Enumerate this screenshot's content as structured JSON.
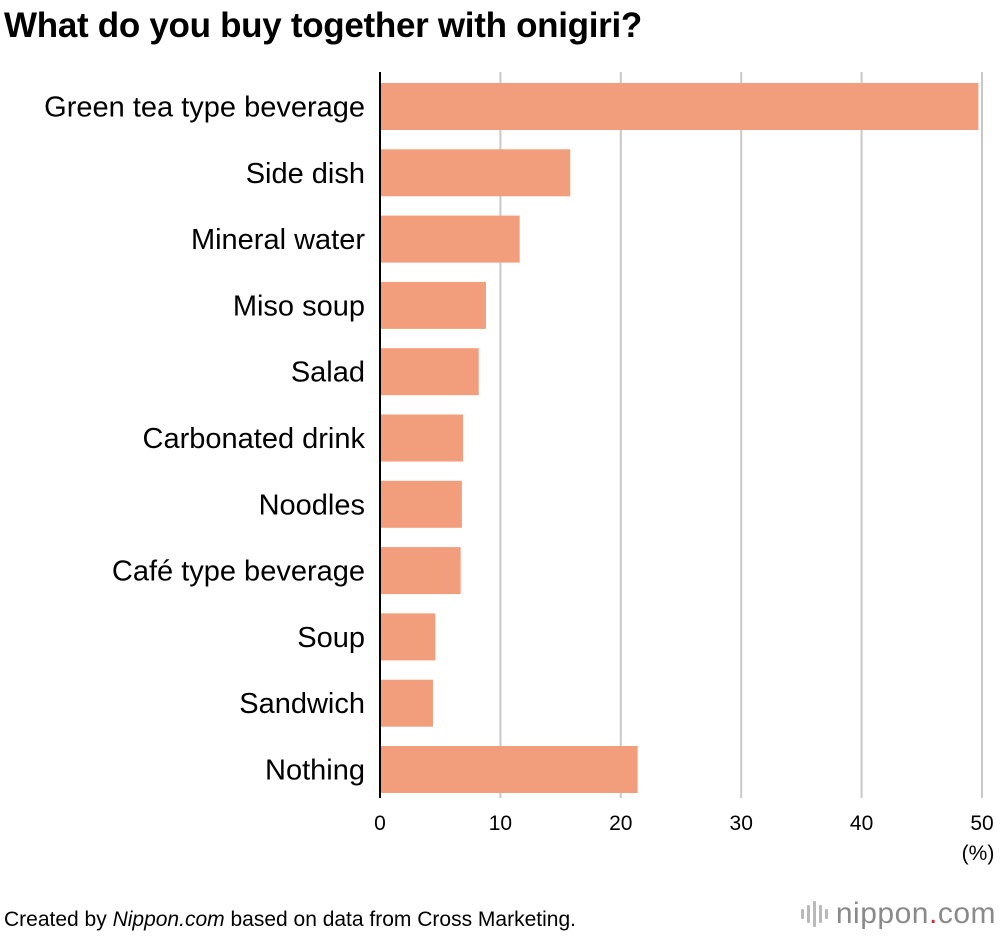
{
  "chart_data": {
    "type": "bar",
    "orientation": "horizontal",
    "title": "What do you buy together with onigiri?",
    "categories": [
      "Green tea type beverage",
      "Side dish",
      "Mineral water",
      "Miso soup",
      "Salad",
      "Carbonated drink",
      "Noodles",
      "Café type beverage",
      "Soup",
      "Sandwich",
      "Nothing"
    ],
    "values": [
      49.7,
      15.8,
      11.6,
      8.8,
      8.2,
      6.9,
      6.8,
      6.7,
      4.6,
      4.4,
      21.4
    ],
    "xlim": [
      0,
      50
    ],
    "xticks": [
      0,
      10,
      20,
      30,
      40,
      50
    ],
    "xunit": "(%)",
    "grid": true,
    "bar_color": "#f29e7c",
    "grid_color": "#c8c8c8"
  },
  "footer": {
    "prefix": "Created by ",
    "source_name": "Nippon.com",
    "suffix": " based on data from Cross Marketing."
  },
  "brand": {
    "name_part1": "nippon",
    "dot": ".",
    "name_part2": "com",
    "mark_icon": "nippon-logo-bars-icon",
    "dot_color": "#d7263d"
  }
}
